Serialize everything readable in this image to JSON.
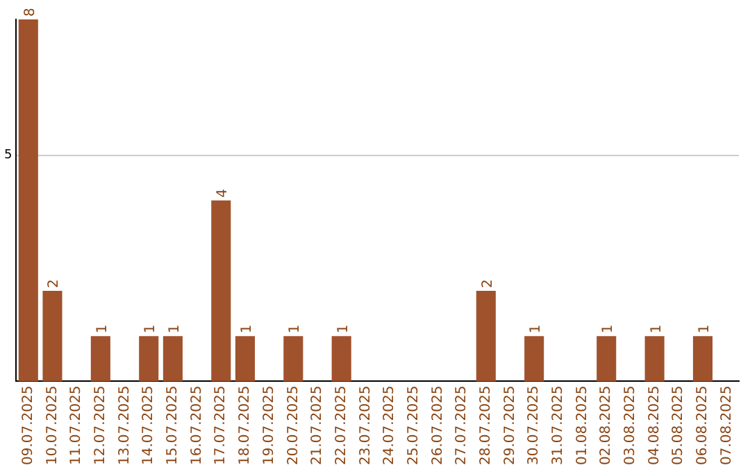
{
  "chart_data": {
    "type": "bar",
    "categories": [
      "09.07.2025",
      "10.07.2025",
      "11.07.2025",
      "12.07.2025",
      "13.07.2025",
      "14.07.2025",
      "15.07.2025",
      "16.07.2025",
      "17.07.2025",
      "18.07.2025",
      "19.07.2025",
      "20.07.2025",
      "21.07.2025",
      "22.07.2025",
      "23.07.2025",
      "24.07.2025",
      "25.07.2025",
      "26.07.2025",
      "27.07.2025",
      "28.07.2025",
      "29.07.2025",
      "30.07.2025",
      "31.07.2025",
      "01.08.2025",
      "02.08.2025",
      "03.08.2025",
      "04.08.2025",
      "05.08.2025",
      "06.08.2025",
      "07.08.2025"
    ],
    "values": [
      8,
      2,
      0,
      1,
      0,
      1,
      1,
      0,
      4,
      1,
      0,
      1,
      0,
      1,
      0,
      0,
      0,
      0,
      0,
      2,
      0,
      1,
      0,
      0,
      1,
      0,
      1,
      0,
      1,
      0
    ],
    "value_labels": [
      "8",
      "2",
      null,
      "1",
      null,
      "1",
      "1",
      null,
      "4",
      "1",
      null,
      "1",
      null,
      "1",
      null,
      null,
      null,
      null,
      null,
      "2",
      null,
      "1",
      null,
      null,
      "1",
      null,
      "1",
      null,
      "1",
      null
    ],
    "color": "#a0522d",
    "ylim": [
      0,
      8
    ],
    "yticks": [
      5
    ],
    "grid": "y"
  }
}
